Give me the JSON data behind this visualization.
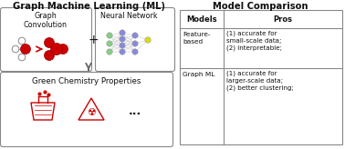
{
  "title_left": "Graph Machine Learning (ML)",
  "title_right": "Model Comparison",
  "gc_label": "Graph\nConvolution",
  "nn_label": "Neural Network",
  "output_label": "Green Chemistry Properties",
  "table_headers": [
    "Models",
    "Pros"
  ],
  "table_rows": [
    [
      "Feature-\nbased",
      "(1) accurate for\nsmall-scale data;\n(2) interpretable;"
    ],
    [
      "Graph ML",
      "(1) accurate for\nlarger-scale data;\n(2) better clustering;"
    ]
  ],
  "red": "#cc0000",
  "dark_red": "#990000",
  "box_edge": "#888888",
  "text_color": "#111111",
  "bg": "#ffffff",
  "nn_green": "#88cc88",
  "nn_blue": "#8888dd",
  "nn_yellow": "#dddd00",
  "nn_edge": "#999999"
}
